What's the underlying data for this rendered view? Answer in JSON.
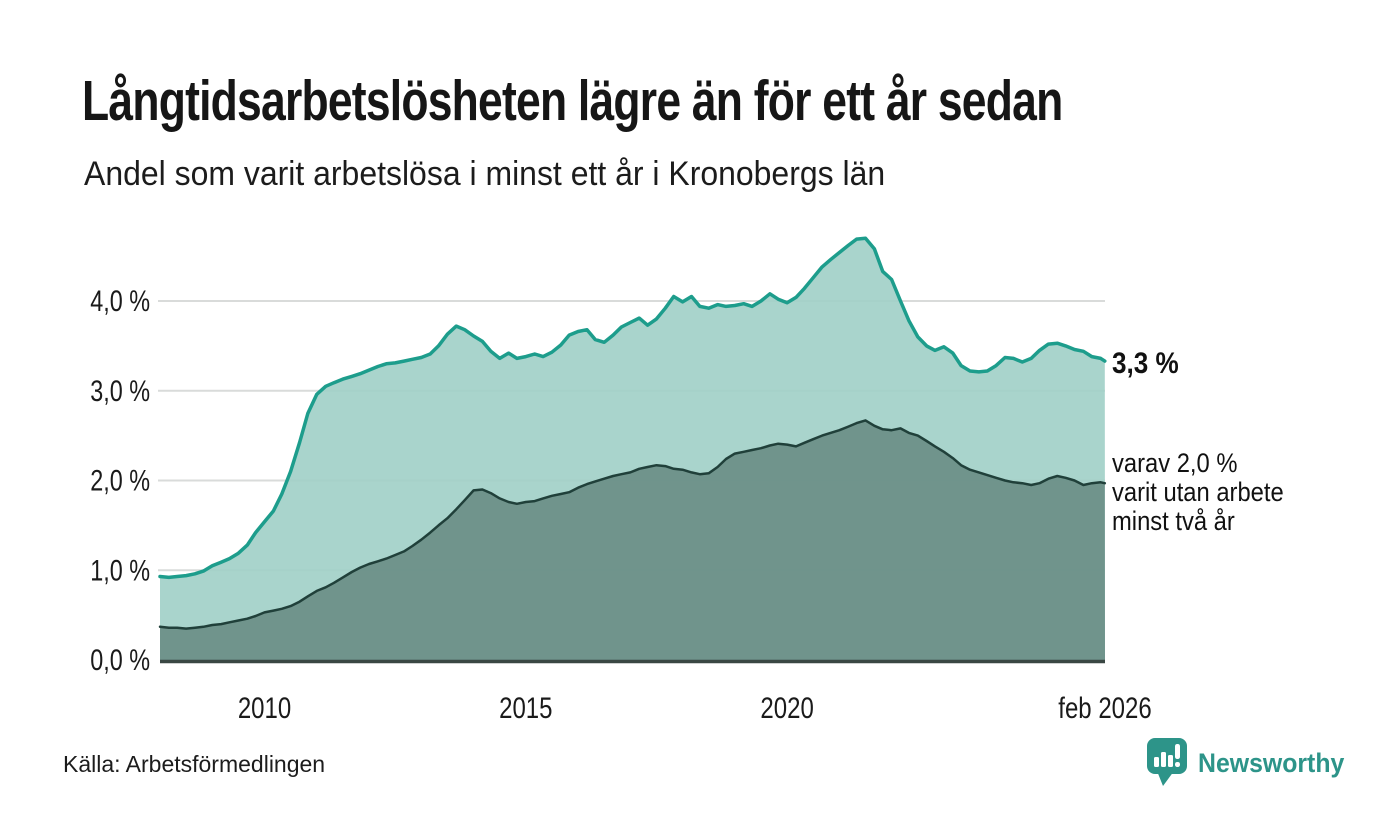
{
  "header": {
    "title": "Långtidsarbetslösheten lägre än för ett år sedan",
    "subtitle": "Andel som varit arbetslösa i minst ett år i Kronobergs län"
  },
  "annotations": {
    "total": {
      "label": "3,3 %"
    },
    "two_year": {
      "lines": [
        "varav 2,0 %",
        "varit utan arbete",
        "minst två år"
      ]
    }
  },
  "footer": {
    "source": "Källa: Arbetsförmedlingen",
    "brand": "Newsworthy"
  },
  "colors": {
    "background": "#ffffff",
    "text": "#1a1a1a",
    "grid": "#d9dbda",
    "axis": "#3a4743",
    "brand_teal": "#2d9489",
    "glyph_white": "#ffffff"
  },
  "chart_data": {
    "type": "area",
    "title": "Långtidsarbetslösheten lägre än för ett år sedan",
    "subtitle": "Andel som varit arbetslösa i minst ett år i Kronobergs län",
    "unit": "%",
    "grid": true,
    "legend": "inline annotations at right edge",
    "x_range": [
      2008.0,
      2026.083
    ],
    "ylim": [
      0,
      5
    ],
    "y_ticks": [
      {
        "v": 0,
        "label": "0,0 %"
      },
      {
        "v": 1,
        "label": "1,0 %"
      },
      {
        "v": 2,
        "label": "2,0 %"
      },
      {
        "v": 3,
        "label": "3,0 %"
      },
      {
        "v": 4,
        "label": "4,0 %"
      }
    ],
    "x_ticks": [
      {
        "t": 2010,
        "label": "2010"
      },
      {
        "t": 2015,
        "label": "2015"
      },
      {
        "t": 2020,
        "label": "2020"
      },
      {
        "t": 2026.083,
        "label": "feb 2026"
      }
    ],
    "series": [
      {
        "id": "total-one-year",
        "name": "Andel arbetslösa minst ett år",
        "end_value": 3.3,
        "end_label": "3,3 %",
        "line_color": "#1d9d8c",
        "fill_color": "#a0cfc6",
        "line_width": 3.5,
        "value_column": 1
      },
      {
        "id": "two-years",
        "name": "varav utan arbete minst två år",
        "end_value": 2.0,
        "end_label": "varav 2,0 % varit utan arbete minst två år",
        "line_color": "#20403a",
        "fill_color": "#698d85",
        "line_width": 2.5,
        "value_column": 2
      }
    ],
    "points": [
      [
        2008.0,
        0.93,
        0.37
      ],
      [
        2008.17,
        0.92,
        0.36
      ],
      [
        2008.33,
        0.93,
        0.36
      ],
      [
        2008.5,
        0.94,
        0.35
      ],
      [
        2008.67,
        0.96,
        0.36
      ],
      [
        2008.83,
        0.99,
        0.37
      ],
      [
        2009.0,
        1.05,
        0.39
      ],
      [
        2009.17,
        1.09,
        0.4
      ],
      [
        2009.33,
        1.13,
        0.42
      ],
      [
        2009.5,
        1.19,
        0.44
      ],
      [
        2009.67,
        1.28,
        0.46
      ],
      [
        2009.83,
        1.42,
        0.49
      ],
      [
        2010.0,
        1.54,
        0.53
      ],
      [
        2010.17,
        1.66,
        0.55
      ],
      [
        2010.33,
        1.85,
        0.57
      ],
      [
        2010.5,
        2.1,
        0.6
      ],
      [
        2010.67,
        2.42,
        0.65
      ],
      [
        2010.83,
        2.75,
        0.71
      ],
      [
        2011.0,
        2.96,
        0.77
      ],
      [
        2011.17,
        3.05,
        0.81
      ],
      [
        2011.33,
        3.09,
        0.86
      ],
      [
        2011.5,
        3.13,
        0.92
      ],
      [
        2011.67,
        3.16,
        0.98
      ],
      [
        2011.83,
        3.19,
        1.03
      ],
      [
        2012.0,
        3.23,
        1.07
      ],
      [
        2012.17,
        3.27,
        1.1
      ],
      [
        2012.33,
        3.3,
        1.13
      ],
      [
        2012.5,
        3.31,
        1.17
      ],
      [
        2012.67,
        3.33,
        1.21
      ],
      [
        2012.83,
        3.35,
        1.27
      ],
      [
        2013.0,
        3.37,
        1.34
      ],
      [
        2013.17,
        3.41,
        1.42
      ],
      [
        2013.33,
        3.5,
        1.5
      ],
      [
        2013.5,
        3.63,
        1.58
      ],
      [
        2013.67,
        3.72,
        1.68
      ],
      [
        2013.83,
        3.68,
        1.78
      ],
      [
        2014.0,
        3.61,
        1.89
      ],
      [
        2014.17,
        3.55,
        1.9
      ],
      [
        2014.33,
        3.44,
        1.86
      ],
      [
        2014.5,
        3.36,
        1.8
      ],
      [
        2014.67,
        3.42,
        1.76
      ],
      [
        2014.83,
        3.36,
        1.74
      ],
      [
        2015.0,
        3.38,
        1.76
      ],
      [
        2015.17,
        3.41,
        1.77
      ],
      [
        2015.33,
        3.38,
        1.8
      ],
      [
        2015.5,
        3.43,
        1.83
      ],
      [
        2015.67,
        3.51,
        1.85
      ],
      [
        2015.83,
        3.62,
        1.87
      ],
      [
        2016.0,
        3.66,
        1.92
      ],
      [
        2016.17,
        3.68,
        1.96
      ],
      [
        2016.33,
        3.57,
        1.99
      ],
      [
        2016.5,
        3.54,
        2.02
      ],
      [
        2016.67,
        3.62,
        2.05
      ],
      [
        2016.83,
        3.71,
        2.07
      ],
      [
        2017.0,
        3.76,
        2.09
      ],
      [
        2017.17,
        3.81,
        2.13
      ],
      [
        2017.33,
        3.73,
        2.15
      ],
      [
        2017.5,
        3.8,
        2.17
      ],
      [
        2017.67,
        3.92,
        2.16
      ],
      [
        2017.83,
        4.05,
        2.13
      ],
      [
        2018.0,
        3.99,
        2.12
      ],
      [
        2018.17,
        4.05,
        2.09
      ],
      [
        2018.33,
        3.94,
        2.07
      ],
      [
        2018.5,
        3.92,
        2.08
      ],
      [
        2018.67,
        3.96,
        2.15
      ],
      [
        2018.83,
        3.94,
        2.24
      ],
      [
        2019.0,
        3.95,
        2.3
      ],
      [
        2019.17,
        3.97,
        2.32
      ],
      [
        2019.33,
        3.94,
        2.34
      ],
      [
        2019.5,
        4.0,
        2.36
      ],
      [
        2019.67,
        4.08,
        2.39
      ],
      [
        2019.83,
        4.02,
        2.41
      ],
      [
        2020.0,
        3.98,
        2.4
      ],
      [
        2020.17,
        4.04,
        2.38
      ],
      [
        2020.33,
        4.14,
        2.42
      ],
      [
        2020.5,
        4.26,
        2.46
      ],
      [
        2020.67,
        4.38,
        2.5
      ],
      [
        2020.83,
        4.46,
        2.53
      ],
      [
        2021.0,
        4.54,
        2.56
      ],
      [
        2021.17,
        4.62,
        2.6
      ],
      [
        2021.33,
        4.69,
        2.64
      ],
      [
        2021.5,
        4.7,
        2.67
      ],
      [
        2021.67,
        4.58,
        2.61
      ],
      [
        2021.83,
        4.33,
        2.57
      ],
      [
        2022.0,
        4.24,
        2.56
      ],
      [
        2022.17,
        4.0,
        2.58
      ],
      [
        2022.33,
        3.78,
        2.53
      ],
      [
        2022.5,
        3.6,
        2.5
      ],
      [
        2022.67,
        3.5,
        2.44
      ],
      [
        2022.83,
        3.45,
        2.38
      ],
      [
        2023.0,
        3.49,
        2.32
      ],
      [
        2023.17,
        3.42,
        2.25
      ],
      [
        2023.33,
        3.28,
        2.17
      ],
      [
        2023.5,
        3.22,
        2.12
      ],
      [
        2023.67,
        3.21,
        2.09
      ],
      [
        2023.83,
        3.22,
        2.06
      ],
      [
        2024.0,
        3.28,
        2.03
      ],
      [
        2024.17,
        3.37,
        2.0
      ],
      [
        2024.33,
        3.36,
        1.98
      ],
      [
        2024.5,
        3.32,
        1.97
      ],
      [
        2024.67,
        3.36,
        1.95
      ],
      [
        2024.83,
        3.45,
        1.97
      ],
      [
        2025.0,
        3.52,
        2.02
      ],
      [
        2025.17,
        3.53,
        2.05
      ],
      [
        2025.33,
        3.5,
        2.03
      ],
      [
        2025.5,
        3.46,
        2.0
      ],
      [
        2025.67,
        3.44,
        1.95
      ],
      [
        2025.83,
        3.38,
        1.97
      ],
      [
        2026.0,
        3.36,
        1.98
      ],
      [
        2026.08,
        3.33,
        1.97
      ]
    ]
  }
}
